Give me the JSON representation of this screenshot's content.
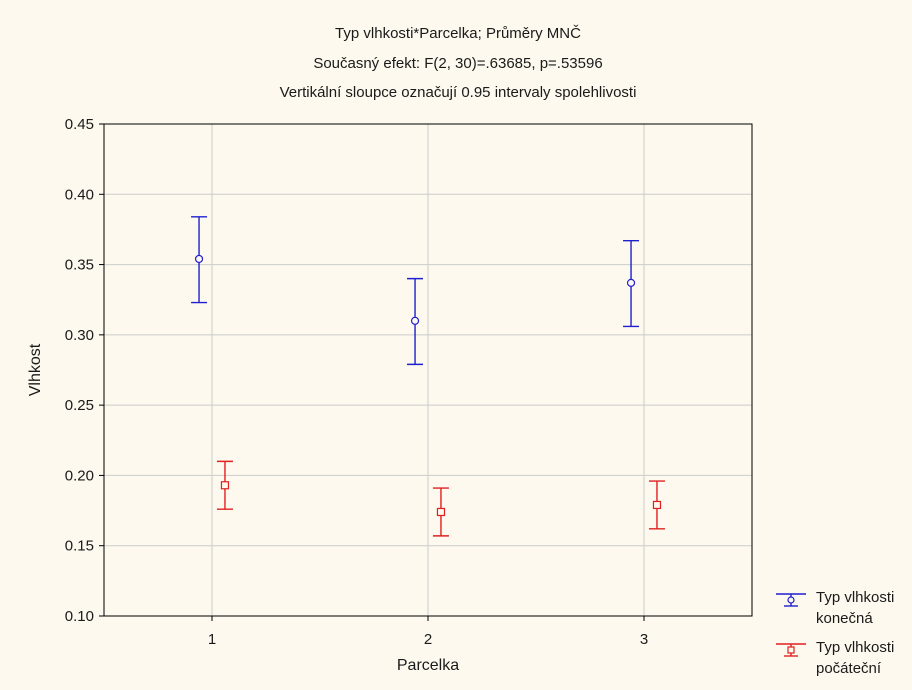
{
  "chart_data": {
    "type": "scatter",
    "title": "Typ vlhkosti*Parcelka; Průměry MNČ",
    "subtitle": "Současný efekt: F(2, 30)=.63685, p=.53596",
    "note": "Vertikální sloupce označují 0.95 intervaly spolehlivosti",
    "xlabel": "Parcelka",
    "ylabel": "Vlhkost",
    "categories": [
      "1",
      "2",
      "3"
    ],
    "ylim": [
      0.1,
      0.45
    ],
    "yticks": [
      "0.10",
      "0.15",
      "0.20",
      "0.25",
      "0.30",
      "0.35",
      "0.40",
      "0.45"
    ],
    "grid": true,
    "legend_position": "bottom-right",
    "series": [
      {
        "name_lines": [
          "Typ vlhkosti",
          "konečná"
        ],
        "color": "#1f1fd0",
        "marker": "circle",
        "offset": -0.06,
        "values": [
          0.354,
          0.31,
          0.337
        ],
        "lower": [
          0.323,
          0.279,
          0.306
        ],
        "upper": [
          0.384,
          0.34,
          0.367
        ]
      },
      {
        "name_lines": [
          "Typ vlhkosti",
          "počáteční"
        ],
        "color": "#e02020",
        "marker": "square",
        "offset": 0.06,
        "values": [
          0.193,
          0.174,
          0.179
        ],
        "lower": [
          0.176,
          0.157,
          0.162
        ],
        "upper": [
          0.21,
          0.191,
          0.196
        ]
      }
    ]
  }
}
